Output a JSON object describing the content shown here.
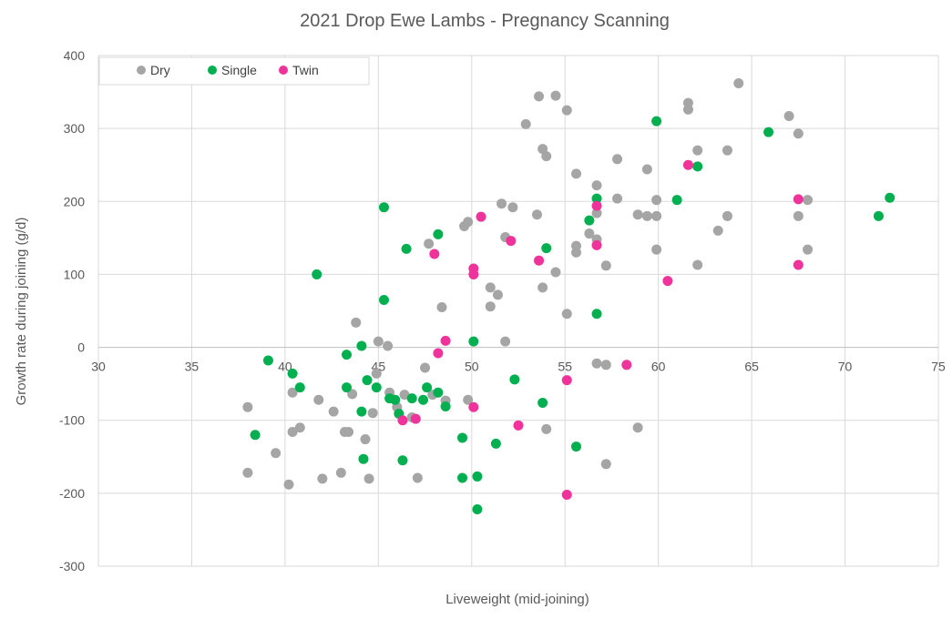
{
  "chart_data": {
    "type": "scatter",
    "title": "2021 Drop Ewe Lambs - Pregnancy Scanning",
    "xlabel": "Liveweight (mid-joining)",
    "ylabel": "Growth rate during joining (g/d)",
    "xlim": [
      30,
      75
    ],
    "ylim": [
      -300,
      400
    ],
    "xticks": [
      "30",
      "35",
      "40",
      "45",
      "50",
      "55",
      "60",
      "65",
      "70",
      "75"
    ],
    "yticks": [
      "-300",
      "-200",
      "-100",
      "0",
      "100",
      "200",
      "300",
      "400"
    ],
    "grid": true,
    "legend_position": "top-left",
    "series": [
      {
        "name": "Dry",
        "color": "#a5a5a5",
        "points": [
          [
            38,
            -82
          ],
          [
            38,
            -172
          ],
          [
            39.5,
            -145
          ],
          [
            40.2,
            -188
          ],
          [
            40.4,
            -62
          ],
          [
            40.4,
            -116
          ],
          [
            40.8,
            -110
          ],
          [
            41.8,
            -72
          ],
          [
            42,
            -180
          ],
          [
            42.6,
            -88
          ],
          [
            43,
            -172
          ],
          [
            43.2,
            -116
          ],
          [
            43.4,
            -116
          ],
          [
            43.6,
            -64
          ],
          [
            43.8,
            34
          ],
          [
            44.3,
            -126
          ],
          [
            44.5,
            -180
          ],
          [
            44.7,
            -90
          ],
          [
            44.9,
            -36
          ],
          [
            45,
            8
          ],
          [
            45.5,
            2
          ],
          [
            45.6,
            -62
          ],
          [
            46,
            -82
          ],
          [
            46.4,
            -65
          ],
          [
            46.8,
            -96
          ],
          [
            47.1,
            -179
          ],
          [
            47.5,
            -28
          ],
          [
            47.7,
            142
          ],
          [
            47.9,
            -65
          ],
          [
            48.4,
            55
          ],
          [
            48.6,
            -73
          ],
          [
            49.6,
            166
          ],
          [
            49.8,
            172
          ],
          [
            49.8,
            -72
          ],
          [
            51,
            82
          ],
          [
            51,
            56
          ],
          [
            51.4,
            72
          ],
          [
            51.6,
            197
          ],
          [
            51.8,
            8
          ],
          [
            51.8,
            151
          ],
          [
            52.2,
            192
          ],
          [
            52.9,
            306
          ],
          [
            53.5,
            182
          ],
          [
            53.6,
            344
          ],
          [
            53.8,
            272
          ],
          [
            53.8,
            82
          ],
          [
            54,
            262
          ],
          [
            54,
            -112
          ],
          [
            54.5,
            345
          ],
          [
            54.5,
            103
          ],
          [
            55.1,
            325
          ],
          [
            55.1,
            46
          ],
          [
            55.6,
            139
          ],
          [
            55.6,
            130
          ],
          [
            55.6,
            238
          ],
          [
            56.3,
            156
          ],
          [
            56.7,
            222
          ],
          [
            56.7,
            184
          ],
          [
            56.7,
            148
          ],
          [
            56.7,
            -22
          ],
          [
            57.2,
            112
          ],
          [
            57.2,
            -24
          ],
          [
            57.2,
            -160
          ],
          [
            57.8,
            258
          ],
          [
            57.8,
            204
          ],
          [
            58.9,
            182
          ],
          [
            58.9,
            -110
          ],
          [
            59.4,
            180
          ],
          [
            59.4,
            244
          ],
          [
            59.9,
            180
          ],
          [
            59.9,
            202
          ],
          [
            59.9,
            134
          ],
          [
            61.6,
            335
          ],
          [
            61.6,
            326
          ],
          [
            62.1,
            270
          ],
          [
            62.1,
            113
          ],
          [
            63.2,
            160
          ],
          [
            63.7,
            270
          ],
          [
            63.7,
            180
          ],
          [
            64.3,
            362
          ],
          [
            67,
            317
          ],
          [
            67.5,
            293
          ],
          [
            67.5,
            180
          ],
          [
            68,
            202
          ],
          [
            68,
            134
          ]
        ]
      },
      {
        "name": "Single",
        "color": "#00b050",
        "points": [
          [
            38.4,
            -120
          ],
          [
            39.1,
            -18
          ],
          [
            40.4,
            -36
          ],
          [
            40.8,
            -55
          ],
          [
            41.7,
            100
          ],
          [
            43.3,
            -10
          ],
          [
            43.3,
            -55
          ],
          [
            44.1,
            2
          ],
          [
            44.1,
            -88
          ],
          [
            44.2,
            -153
          ],
          [
            44.4,
            -45
          ],
          [
            44.9,
            -55
          ],
          [
            45.3,
            192
          ],
          [
            45.3,
            65
          ],
          [
            45.6,
            -70
          ],
          [
            45.9,
            -72
          ],
          [
            46.1,
            -91
          ],
          [
            46.3,
            -155
          ],
          [
            46.5,
            135
          ],
          [
            46.8,
            -70
          ],
          [
            47.4,
            -72
          ],
          [
            47.6,
            -55
          ],
          [
            48.2,
            155
          ],
          [
            48.2,
            -62
          ],
          [
            48.6,
            -81
          ],
          [
            49.5,
            -124
          ],
          [
            49.5,
            -179
          ],
          [
            50.1,
            8
          ],
          [
            50.3,
            -177
          ],
          [
            50.3,
            -222
          ],
          [
            51.3,
            -132
          ],
          [
            52.3,
            -44
          ],
          [
            53.8,
            -76
          ],
          [
            54,
            136
          ],
          [
            55.6,
            -136
          ],
          [
            56.3,
            174
          ],
          [
            56.7,
            204
          ],
          [
            56.7,
            46
          ],
          [
            59.9,
            310
          ],
          [
            61,
            202
          ],
          [
            62.1,
            248
          ],
          [
            65.9,
            295
          ],
          [
            71.8,
            180
          ],
          [
            72.4,
            205
          ]
        ]
      },
      {
        "name": "Twin",
        "color": "#f0339a",
        "points": [
          [
            46.3,
            -100
          ],
          [
            47,
            -98
          ],
          [
            48,
            128
          ],
          [
            48.2,
            -8
          ],
          [
            48.6,
            9
          ],
          [
            50.1,
            108
          ],
          [
            50.1,
            100
          ],
          [
            50.1,
            -82
          ],
          [
            50.5,
            179
          ],
          [
            52.1,
            146
          ],
          [
            52.5,
            -107
          ],
          [
            53.6,
            119
          ],
          [
            55.1,
            -45
          ],
          [
            55.1,
            -202
          ],
          [
            56.7,
            194
          ],
          [
            56.7,
            140
          ],
          [
            58.3,
            -24
          ],
          [
            60.5,
            91
          ],
          [
            61.6,
            250
          ],
          [
            67.5,
            203
          ],
          [
            67.5,
            113
          ]
        ]
      }
    ]
  }
}
